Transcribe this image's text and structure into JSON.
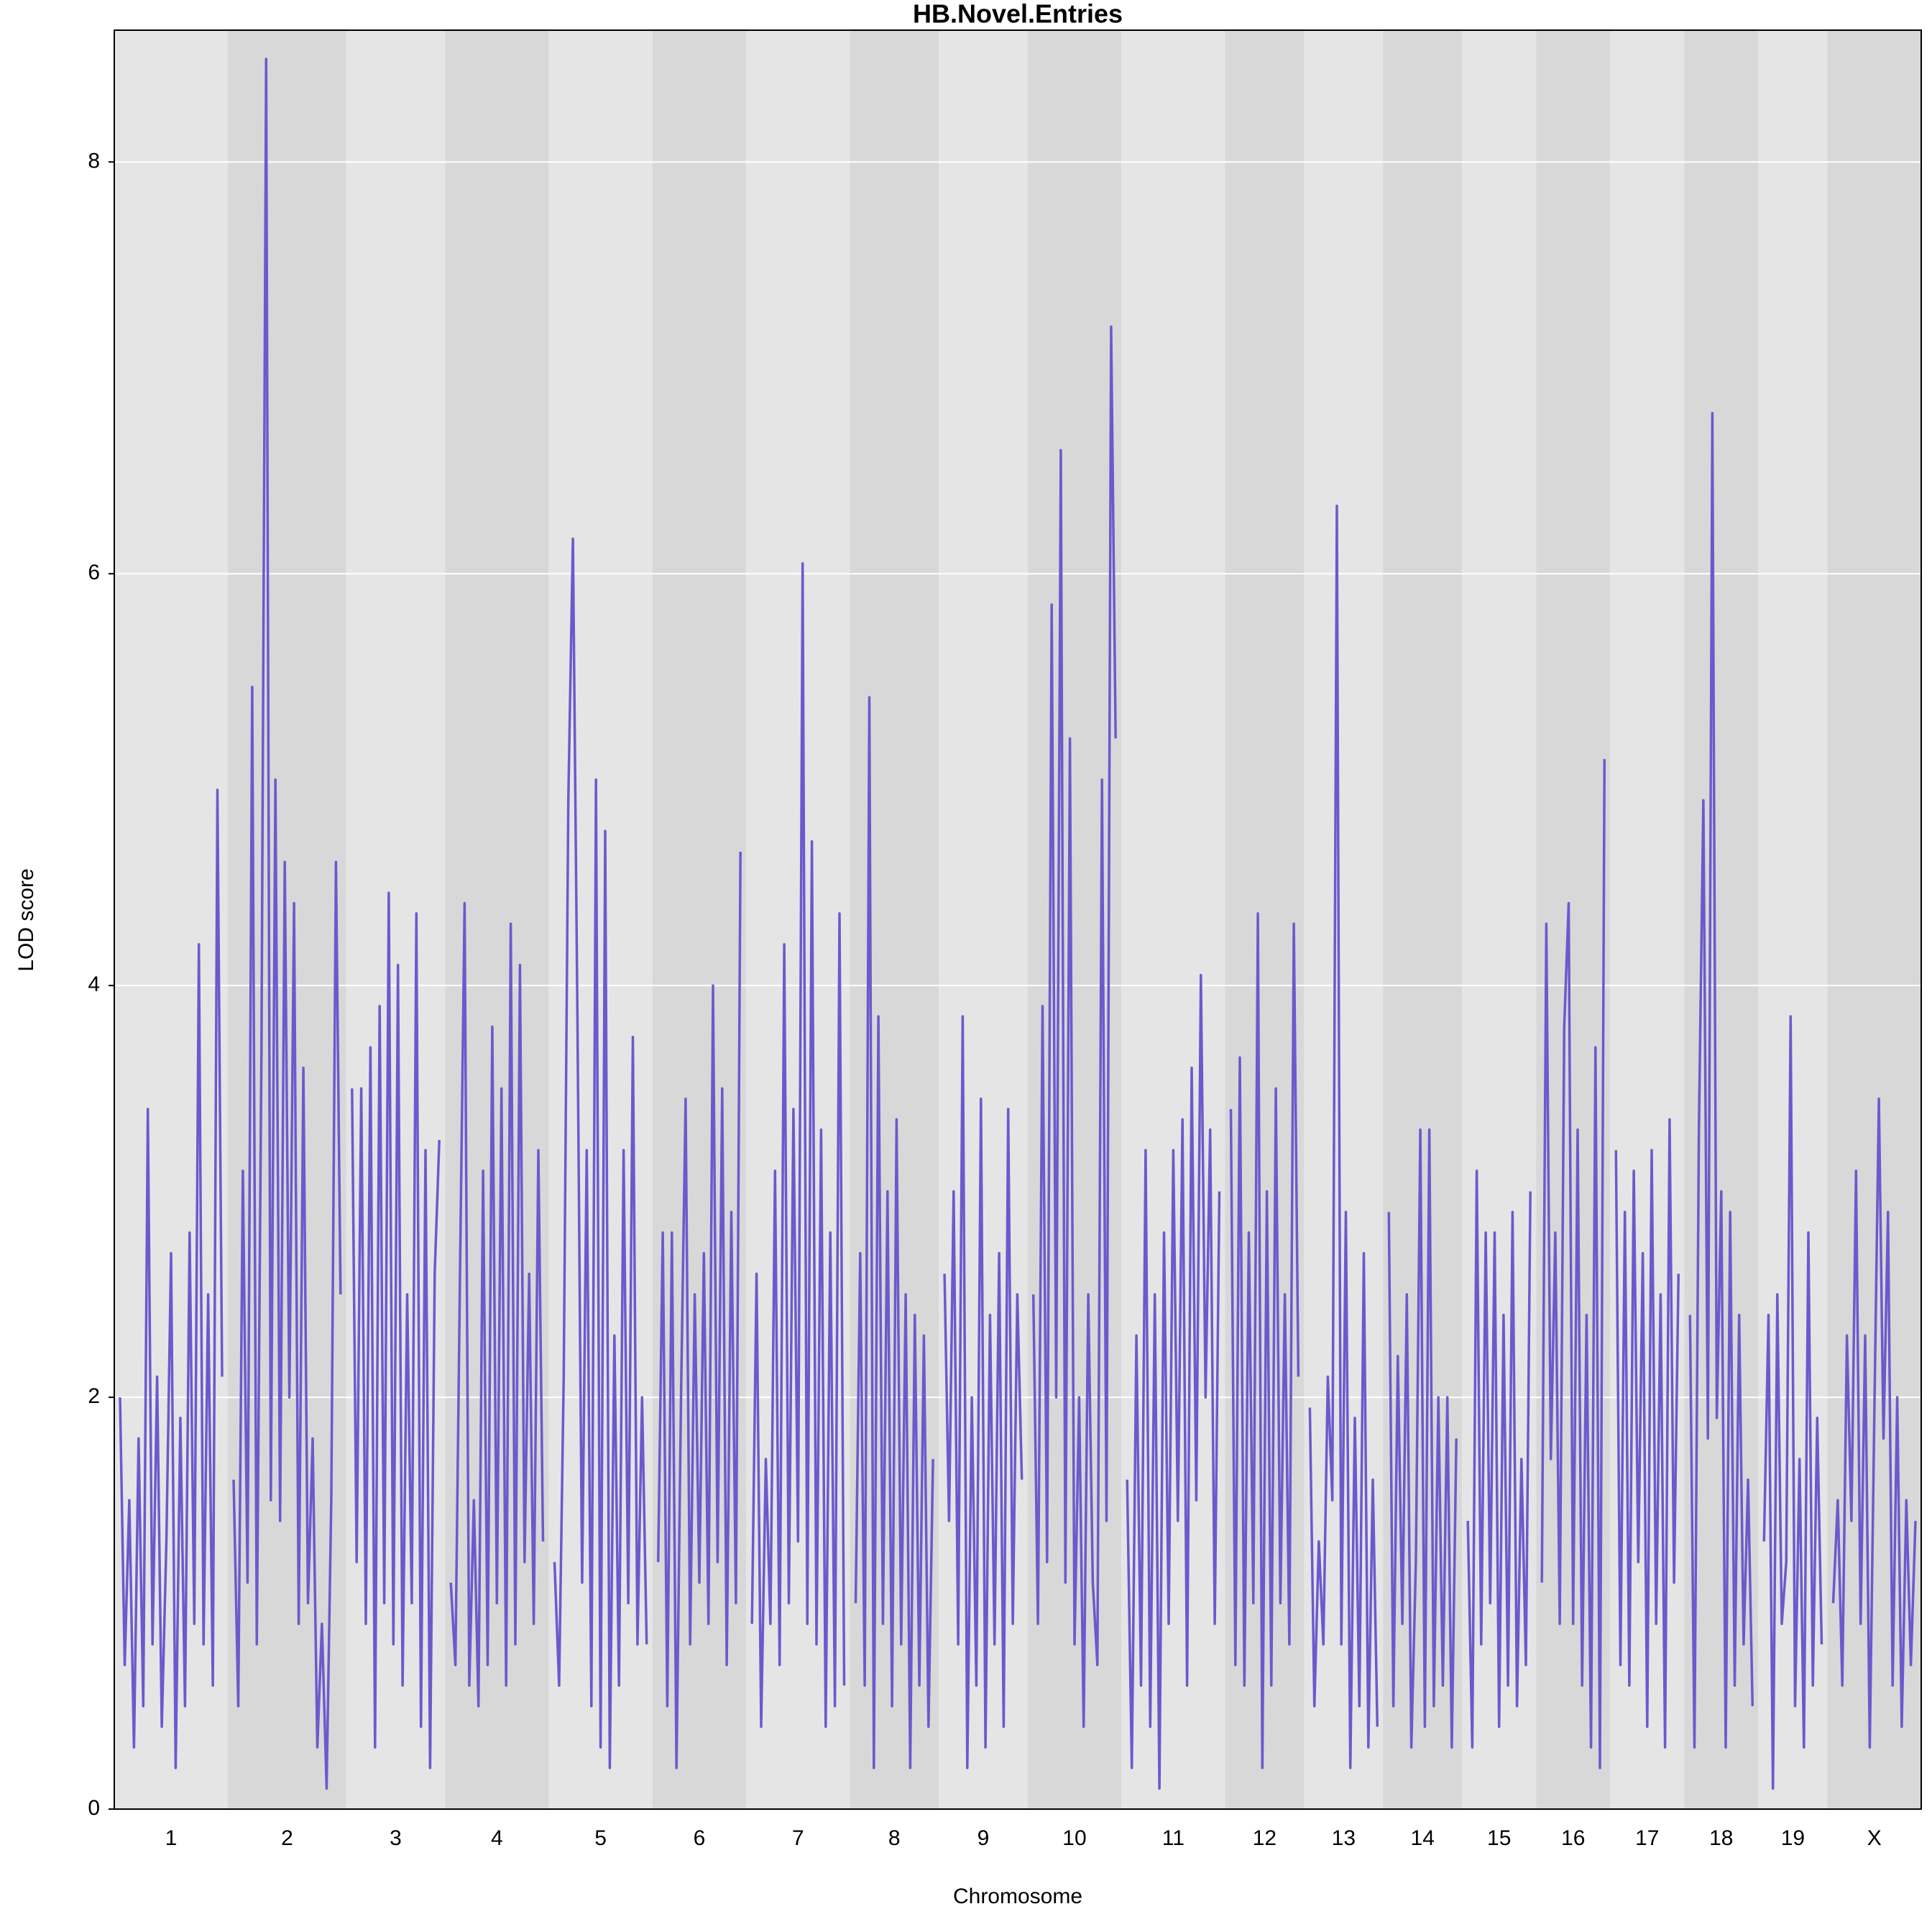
{
  "chart_data": {
    "type": "line",
    "title": "HB.Novel.Entries",
    "x_label": "Chromosome",
    "y_label": "LOD score",
    "color": "#6a5acd",
    "band_colors": [
      "#e5e5e5",
      "#d8d8d8"
    ],
    "grid": true,
    "ylim": [
      0,
      8.64
    ],
    "yticks": [
      0,
      2,
      4,
      6,
      8
    ],
    "categories": [
      "1",
      "2",
      "3",
      "4",
      "5",
      "6",
      "7",
      "8",
      "9",
      "10",
      "11",
      "12",
      "13",
      "14",
      "15",
      "16",
      "17",
      "18",
      "19",
      "X"
    ],
    "values": [
      [
        2.0,
        0.7,
        1.5,
        0.3,
        1.8,
        0.5,
        3.4,
        0.8,
        2.1,
        0.4,
        1.3,
        2.7,
        0.2,
        1.9,
        0.5,
        2.8,
        0.9,
        4.2,
        0.8,
        2.5,
        0.6,
        4.95,
        2.1
      ],
      [
        1.6,
        0.5,
        3.1,
        1.1,
        5.45,
        0.8,
        3.7,
        8.5,
        1.5,
        5.0,
        1.4,
        4.6,
        2.0,
        4.4,
        0.9,
        3.6,
        1.0,
        1.8,
        0.3,
        0.9,
        0.1,
        1.5,
        4.6,
        2.5
      ],
      [
        3.5,
        1.2,
        3.5,
        0.9,
        3.7,
        0.3,
        3.9,
        1.0,
        4.45,
        0.8,
        4.1,
        0.6,
        2.5,
        1.0,
        4.35,
        0.4,
        3.2,
        0.2,
        2.6,
        3.25
      ],
      [
        1.1,
        0.7,
        2.6,
        4.4,
        0.6,
        1.5,
        0.5,
        3.1,
        0.7,
        3.8,
        1.0,
        3.5,
        0.6,
        4.3,
        0.8,
        4.1,
        1.2,
        2.6,
        0.9,
        3.2,
        1.3
      ],
      [
        1.2,
        0.6,
        2.1,
        4.9,
        6.17,
        3.8,
        1.1,
        3.2,
        0.5,
        5.0,
        0.3,
        4.75,
        0.2,
        2.3,
        0.6,
        3.2,
        1.0,
        3.75,
        0.8,
        2.0,
        0.8
      ],
      [
        1.2,
        2.8,
        0.5,
        2.8,
        0.2,
        2.0,
        3.45,
        0.8,
        2.5,
        1.1,
        2.7,
        0.9,
        4.0,
        1.2,
        3.5,
        0.7,
        2.9,
        1.0,
        4.65
      ],
      [
        0.9,
        2.6,
        0.4,
        1.7,
        0.9,
        3.1,
        0.7,
        4.2,
        1.0,
        3.4,
        1.3,
        6.05,
        0.9,
        4.7,
        0.8,
        3.3,
        0.4,
        2.8,
        0.5,
        4.35,
        0.6
      ],
      [
        1.0,
        2.7,
        0.6,
        5.4,
        0.2,
        3.85,
        0.9,
        3.0,
        0.5,
        3.35,
        0.8,
        2.5,
        0.2,
        2.4,
        0.6,
        2.3,
        0.4,
        1.7
      ],
      [
        2.6,
        1.4,
        3.0,
        0.8,
        3.85,
        0.2,
        2.0,
        0.6,
        3.45,
        0.3,
        2.4,
        0.8,
        2.7,
        0.4,
        3.4,
        0.9,
        2.5,
        1.6
      ],
      [
        2.5,
        0.9,
        3.9,
        1.2,
        5.85,
        2.0,
        6.6,
        1.1,
        5.2,
        0.8,
        2.0,
        0.4,
        2.5,
        1.1,
        0.7,
        5.0,
        1.4,
        7.2,
        5.2
      ],
      [
        1.6,
        0.2,
        2.3,
        0.6,
        3.2,
        0.4,
        2.5,
        0.1,
        2.8,
        0.9,
        3.2,
        1.4,
        3.35,
        0.6,
        3.6,
        1.5,
        4.05,
        2.0,
        3.3,
        0.9,
        3.0
      ],
      [
        3.4,
        0.7,
        3.65,
        0.6,
        2.8,
        1.0,
        4.35,
        0.2,
        3.0,
        0.6,
        3.5,
        1.0,
        2.5,
        0.8,
        4.3,
        2.1
      ],
      [
        1.95,
        0.5,
        1.3,
        0.8,
        2.1,
        1.5,
        6.33,
        0.8,
        2.9,
        0.2,
        1.9,
        0.5,
        2.7,
        0.3,
        1.6,
        0.4
      ],
      [
        2.9,
        0.5,
        2.2,
        0.9,
        2.5,
        0.3,
        1.2,
        3.3,
        0.4,
        3.3,
        0.5,
        2.0,
        0.6,
        2.0,
        0.3,
        1.8
      ],
      [
        1.4,
        0.3,
        3.1,
        0.8,
        2.8,
        1.0,
        2.8,
        0.4,
        2.4,
        0.6,
        2.9,
        0.5,
        1.7,
        0.7,
        3.0
      ],
      [
        1.1,
        4.3,
        1.7,
        2.8,
        0.9,
        3.8,
        4.4,
        0.9,
        3.3,
        0.6,
        2.4,
        0.3,
        3.7,
        0.2,
        5.1
      ],
      [
        3.2,
        0.7,
        2.9,
        0.6,
        3.1,
        1.2,
        2.7,
        0.4,
        3.2,
        0.9,
        2.5,
        0.3,
        3.35,
        1.1,
        2.6
      ],
      [
        2.4,
        0.3,
        3.3,
        4.9,
        1.8,
        6.78,
        1.9,
        3.0,
        0.3,
        2.9,
        0.6,
        2.4,
        0.8,
        1.6,
        0.5
      ],
      [
        1.3,
        2.4,
        0.1,
        2.5,
        0.9,
        1.2,
        3.85,
        0.5,
        1.7,
        0.3,
        2.8,
        0.6,
        1.9,
        0.8
      ],
      [
        1.0,
        1.5,
        0.6,
        2.3,
        1.4,
        3.1,
        0.9,
        2.3,
        0.3,
        1.9,
        3.45,
        1.8,
        2.9,
        0.6,
        2.0,
        0.4,
        1.5,
        0.7,
        1.4
      ]
    ]
  }
}
